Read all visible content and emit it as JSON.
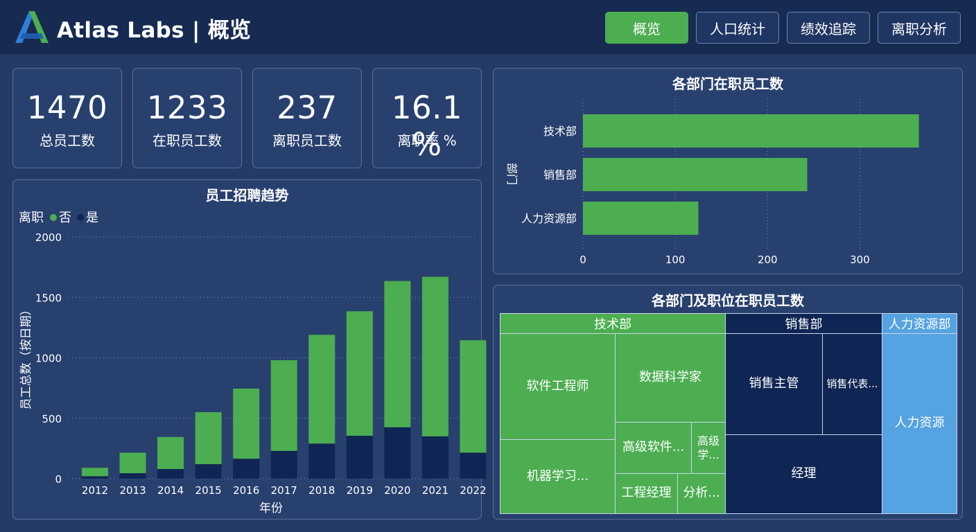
{
  "header": {
    "title": "Atlas Labs | 概览",
    "nav": [
      {
        "label": "概览",
        "active": true
      },
      {
        "label": "人口统计",
        "active": false
      },
      {
        "label": "绩效追踪",
        "active": false
      },
      {
        "label": "离职分析",
        "active": false
      }
    ]
  },
  "kpis": [
    {
      "value": "1470",
      "label": "总员工数"
    },
    {
      "value": "1233",
      "label": "在职员工数"
    },
    {
      "value": "237",
      "label": "离职员工数"
    },
    {
      "value": "16.1 %",
      "label": "离职率 %"
    }
  ],
  "colors": {
    "green": "#4cae51",
    "navy": "#0f2553",
    "light_blue": "#55a3e0",
    "background": "#263a66",
    "header": "#162a52"
  },
  "hiring_chart": {
    "title": "员工招聘趋势",
    "legend_title": "离职",
    "legend": [
      "否",
      "是"
    ],
    "ylabel": "员工总数（按日期）",
    "xlabel": "年份"
  },
  "dept_chart": {
    "title": "各部门在职员工数",
    "ylabel": "部门"
  },
  "treemap": {
    "title": "各部门及职位在职员工数",
    "groups": [
      {
        "name": "技术部",
        "color": "green",
        "items": [
          "软件工程师",
          "数据科学家",
          "机器学习...",
          "高级软件...",
          "高级学...",
          "工程经理",
          "分析..."
        ]
      },
      {
        "name": "销售部",
        "color": "navy",
        "items": [
          "销售主管",
          "销售代表...",
          "经理"
        ]
      },
      {
        "name": "人力资源部",
        "color": "blue",
        "items": [
          "人力资源"
        ]
      }
    ]
  },
  "chart_data": [
    {
      "type": "bar",
      "stacked": true,
      "title": "员工招聘趋势",
      "xlabel": "年份",
      "ylabel": "员工总数（按日期）",
      "legend_title": "离职",
      "categories": [
        "2012",
        "2013",
        "2014",
        "2015",
        "2016",
        "2017",
        "2018",
        "2019",
        "2020",
        "2021",
        "2022"
      ],
      "series": [
        {
          "name": "是",
          "color": "#0f2553",
          "values": [
            20,
            45,
            80,
            120,
            165,
            230,
            290,
            355,
            425,
            350,
            215
          ]
        },
        {
          "name": "否",
          "color": "#4cae51",
          "values": [
            70,
            170,
            265,
            430,
            580,
            750,
            900,
            1030,
            1210,
            1320,
            930
          ]
        }
      ],
      "ylim": [
        0,
        2000
      ],
      "yticks": [
        0,
        500,
        1000,
        1500,
        2000
      ],
      "grid": true,
      "legend_position": "top-left"
    },
    {
      "type": "bar",
      "orientation": "horizontal",
      "title": "各部门在职员工数",
      "ylabel": "部门",
      "categories": [
        "技术部",
        "销售部",
        "人力资源部"
      ],
      "values": [
        364,
        243,
        125
      ],
      "xlim": [
        0,
        365
      ],
      "xticks": [
        0,
        100,
        200,
        300
      ],
      "color": "#4cae51",
      "grid": true
    }
  ]
}
